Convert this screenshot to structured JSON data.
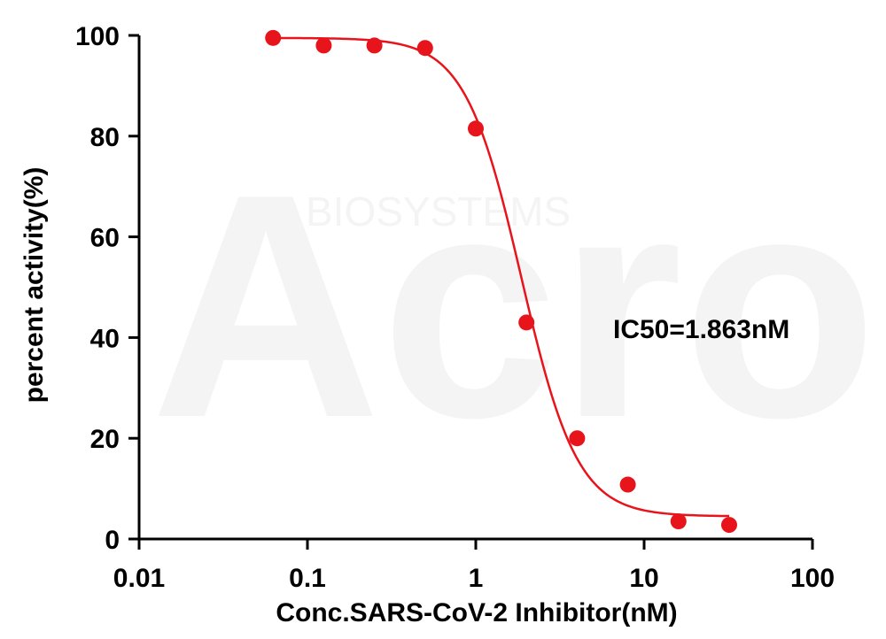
{
  "chart_data": {
    "type": "scatter",
    "xlabel": "Conc.SARS-CoV-2 Inhibitor(nM)",
    "ylabel": "percent activity(%)",
    "xscale": "log",
    "xlim": [
      0.01,
      100
    ],
    "ylim": [
      0,
      100
    ],
    "x_ticks": [
      0.01,
      0.1,
      1,
      10,
      100
    ],
    "x_tick_labels": [
      "0.01",
      "0.1",
      "1",
      "10",
      "100"
    ],
    "y_ticks": [
      0,
      20,
      40,
      60,
      80,
      100
    ],
    "y_tick_labels": [
      "0",
      "20",
      "40",
      "60",
      "80",
      "100"
    ],
    "grid": false,
    "series": [
      {
        "points": [
          {
            "x": 0.0625,
            "y": 99.5
          },
          {
            "x": 0.125,
            "y": 98.0
          },
          {
            "x": 0.25,
            "y": 98.0
          },
          {
            "x": 0.5,
            "y": 97.5
          },
          {
            "x": 1.0,
            "y": 81.5
          },
          {
            "x": 2.0,
            "y": 43.0
          },
          {
            "x": 4.0,
            "y": 20.0
          },
          {
            "x": 8.0,
            "y": 10.8
          },
          {
            "x": 16.0,
            "y": 3.5
          },
          {
            "x": 32.0,
            "y": 2.8
          }
        ],
        "fit": {
          "model": "four-parameter logistic",
          "top": 99.5,
          "bottom": 4.5,
          "ic50": 1.863,
          "hill": 2.6,
          "x_range": [
            0.0625,
            32
          ]
        },
        "color": "#e8141b"
      }
    ],
    "annotations": [
      {
        "text": "IC50=1.863nM"
      }
    ]
  },
  "watermark": {
    "text": "BIOSYSTEMS",
    "logo_text": "Acro"
  }
}
